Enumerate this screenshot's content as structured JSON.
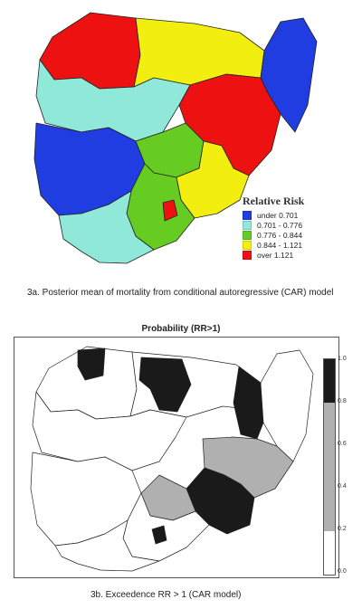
{
  "panel_a": {
    "legend_title": "Relative Risk",
    "legend": [
      {
        "label": "under 0.701",
        "color": "#1f3de0"
      },
      {
        "label": "0.701 - 0.776",
        "color": "#8fe8d8"
      },
      {
        "label": "0.776 - 0.844",
        "color": "#66cc22"
      },
      {
        "label": "0.844 - 1.121",
        "color": "#f2ee10"
      },
      {
        "label": "over 1.121",
        "color": "#ee1111"
      }
    ],
    "caption": "3a. Posterior mean of mortality from conditional autoregressive (CAR) model"
  },
  "panel_b": {
    "title": "Probability (RR>1)",
    "colorbar_ticks": [
      "1.0",
      "0.8",
      "0.6",
      "0.4",
      "0.2",
      "0.0"
    ],
    "colorbar_colors": {
      "low": "#ffffff",
      "mid": "#b0b0b0",
      "high": "#1a1a1a"
    },
    "caption": "3b. Exceedence RR > 1 (CAR model)"
  }
}
